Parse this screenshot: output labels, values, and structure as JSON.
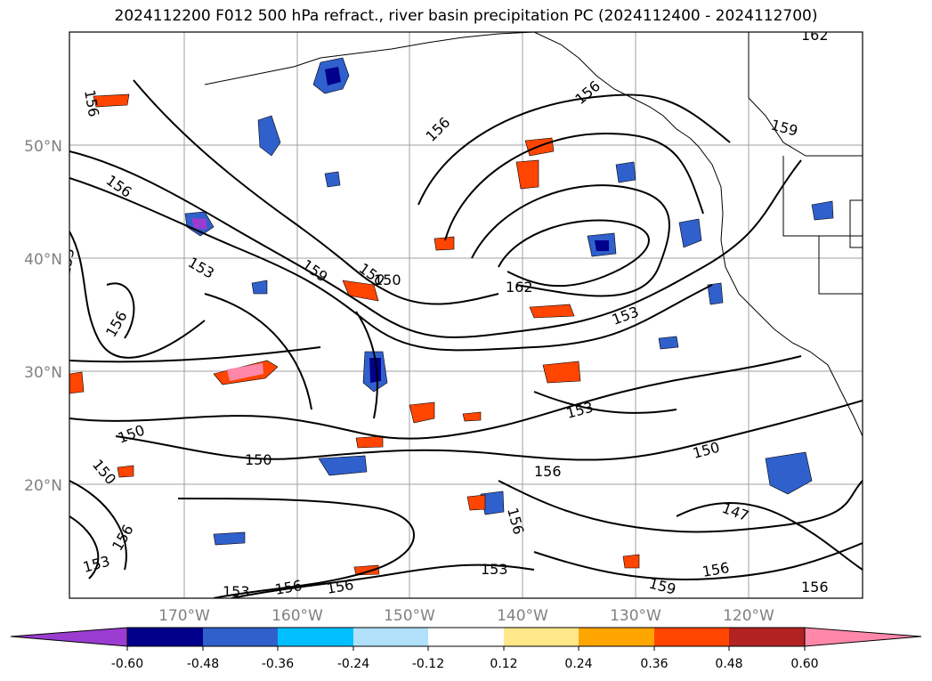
{
  "title": "2024112200 F012 500 hPa refract., river basin precipitation PC (2024112400 - 2024112700)",
  "lat_labels": [
    "50°N",
    "40°N",
    "30°N",
    "20°N"
  ],
  "lon_labels": [
    "170°W",
    "160°W",
    "150°W",
    "140°W",
    "130°W",
    "120°W"
  ],
  "contour_labels": [
    "156",
    "156",
    "159",
    "162",
    "156",
    "156",
    "153",
    "150",
    "153",
    "159",
    "150",
    "162",
    "153",
    "156",
    "153",
    "150",
    "150",
    "156",
    "150",
    "156",
    "153",
    "150",
    "147",
    "156",
    "153",
    "156",
    "159",
    "156",
    "153",
    "156",
    "156"
  ],
  "colorbar": {
    "ticks": [
      "-0.60",
      "-0.48",
      "-0.36",
      "-0.24",
      "-0.12",
      "0.12",
      "0.24",
      "0.36",
      "0.48",
      "0.60"
    ],
    "colors": {
      "under": "#9b3cd0",
      "b1": "#00008b",
      "b2": "#3060cc",
      "b3": "#00bfff",
      "b4": "#b0e0fa",
      "b5": "#ffffff",
      "b6": "#ffe88a",
      "b7": "#ffa500",
      "b8": "#ff4500",
      "b9": "#b22222",
      "over": "#ff88aa"
    }
  }
}
